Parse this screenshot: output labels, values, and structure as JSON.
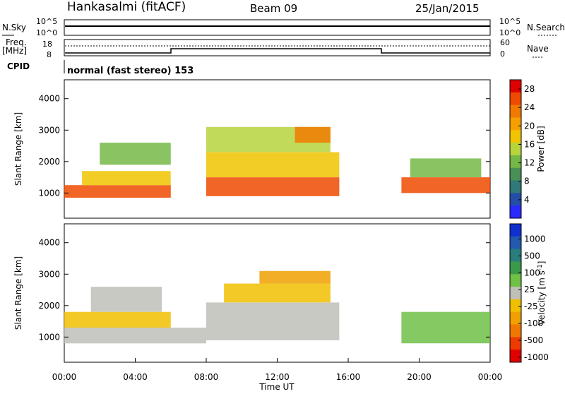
{
  "header": {
    "station": "Hankasalmi (fitACF)",
    "beam": "Beam 09",
    "date": "25/Jan/2015"
  },
  "top_panels": {
    "nsky_label": "N.Sky",
    "nsearch_label": "N.Search",
    "freq_label_1": "Freq.",
    "freq_label_2": "[MHz]",
    "nave_label": "Nave",
    "cpid_label": "CPID",
    "cpid_text": "normal (fast stereo) 153",
    "noise_left_ticks": [
      "10^5",
      "10^0"
    ],
    "noise_right_ticks": [
      "10^5",
      "10^0"
    ],
    "freq_ticks": [
      "18",
      "8"
    ],
    "nave_ticks": [
      "60",
      "0"
    ]
  },
  "colors": {
    "power_scale": [
      "#2a2aff",
      "#244da8",
      "#2f7a78",
      "#4a8f55",
      "#76b847",
      "#b7d43c",
      "#f0c400",
      "#f5a000",
      "#f07a00",
      "#ee4a00",
      "#e00000"
    ],
    "velocity_scale": [
      "#1030d0",
      "#2459b0",
      "#2a7d7d",
      "#3b9a4a",
      "#6ec047",
      "#c0c0b8",
      "#f0c000",
      "#f0a000",
      "#f07800",
      "#ec3a00",
      "#e00000"
    ]
  },
  "chart_data": [
    {
      "type": "heatmap",
      "name": "power",
      "ylabel": "Slant Range [km]",
      "xlabel": "Time UT",
      "x_ticks": [
        "00:00",
        "04:00",
        "08:00",
        "12:00",
        "16:00",
        "20:00",
        "00:00"
      ],
      "y_ticks": [
        "1000",
        "2000",
        "3000",
        "4000"
      ],
      "ylim": [
        200,
        4600
      ],
      "xlim_hours": [
        0,
        24
      ],
      "colorbar": {
        "label": "Power [dB]",
        "ticks": [
          "4",
          "8",
          "12",
          "16",
          "20",
          "24",
          "28"
        ],
        "range": [
          0,
          30
        ]
      },
      "regions": [
        {
          "t": [
            0.0,
            6.0
          ],
          "r": [
            850,
            1250
          ],
          "value": 27
        },
        {
          "t": [
            1.0,
            6.0
          ],
          "r": [
            1250,
            1700
          ],
          "value": 18
        },
        {
          "t": [
            2.0,
            6.0
          ],
          "r": [
            1900,
            2600
          ],
          "value": 12
        },
        {
          "t": [
            8.0,
            15.5
          ],
          "r": [
            900,
            1500
          ],
          "value": 25
        },
        {
          "t": [
            8.0,
            15.5
          ],
          "r": [
            1500,
            2300
          ],
          "value": 18
        },
        {
          "t": [
            8.0,
            15.0
          ],
          "r": [
            2300,
            3100
          ],
          "value": 14
        },
        {
          "t": [
            13.0,
            15.0
          ],
          "r": [
            2600,
            3100
          ],
          "value": 22
        },
        {
          "t": [
            19.0,
            24.0
          ],
          "r": [
            1000,
            1500
          ],
          "value": 26
        },
        {
          "t": [
            19.5,
            23.5
          ],
          "r": [
            1500,
            2100
          ],
          "value": 13
        }
      ]
    },
    {
      "type": "heatmap",
      "name": "velocity",
      "ylabel": "Slant Range [km]",
      "xlabel": "Time UT",
      "x_ticks": [
        "00:00",
        "04:00",
        "08:00",
        "12:00",
        "16:00",
        "20:00",
        "00:00"
      ],
      "y_ticks": [
        "1000",
        "2000",
        "3000",
        "4000"
      ],
      "ylim": [
        200,
        4600
      ],
      "xlim_hours": [
        0,
        24
      ],
      "colorbar": {
        "label": "Velocity [m s",
        "label_sup": "-1",
        "label_end": "]",
        "ticks": [
          "1000",
          "500",
          "100",
          "25",
          "-25",
          "-100",
          "-500",
          "-1000"
        ],
        "range": [
          -1000,
          1000
        ]
      },
      "regions": [
        {
          "t": [
            0.0,
            8.0
          ],
          "r": [
            800,
            1300
          ],
          "value": 0
        },
        {
          "t": [
            0.0,
            6.0
          ],
          "r": [
            1300,
            1800
          ],
          "value": -150
        },
        {
          "t": [
            1.5,
            5.5
          ],
          "r": [
            1800,
            2600
          ],
          "value": 0
        },
        {
          "t": [
            8.0,
            15.5
          ],
          "r": [
            900,
            2100
          ],
          "value": 0
        },
        {
          "t": [
            9.0,
            15.0
          ],
          "r": [
            2100,
            2700
          ],
          "value": -200
        },
        {
          "t": [
            11.0,
            15.0
          ],
          "r": [
            2700,
            3100
          ],
          "value": -400
        },
        {
          "t": [
            19.0,
            24.0
          ],
          "r": [
            800,
            1800
          ],
          "value": 120
        }
      ]
    }
  ]
}
